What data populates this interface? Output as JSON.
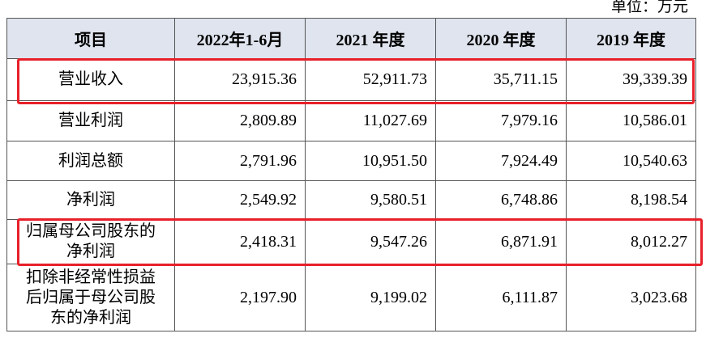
{
  "unit": "单位：万元",
  "table": {
    "header": [
      "项目",
      "2022年1-6月",
      "2021 年度",
      "2020 年度",
      "2019 年度"
    ],
    "rows": [
      [
        "营业收入",
        "23,915.36",
        "52,911.73",
        "35,711.15",
        "39,339.39"
      ],
      [
        "营业利润",
        "2,809.89",
        "11,027.69",
        "7,979.16",
        "10,586.01"
      ],
      [
        "利润总额",
        "2,791.96",
        "10,951.50",
        "7,924.49",
        "10,540.63"
      ],
      [
        "净利润",
        "2,549.92",
        "9,580.51",
        "6,748.86",
        "8,198.54"
      ],
      [
        "归属母公司股东的净利润",
        "2,418.31",
        "9,547.26",
        "6,871.91",
        "8,012.27"
      ],
      [
        "扣除非经常性损益后归属于母公司股东的净利润",
        "2,197.90",
        "9,199.02",
        "6,111.87",
        "3,023.68"
      ]
    ]
  }
}
